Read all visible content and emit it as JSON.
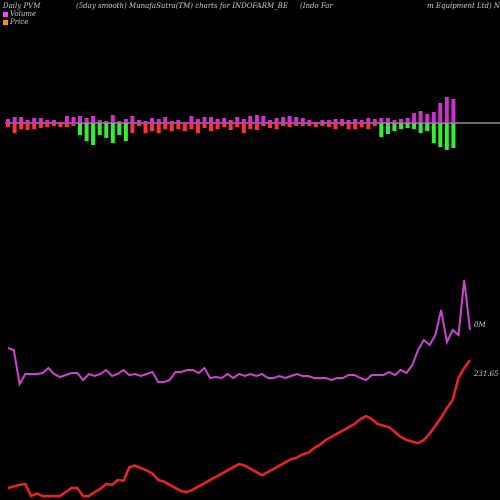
{
  "header": {
    "t1": "Daily PVM",
    "t2": "(5day smooth) MunafaSutra(TM) charts for INDOFARM_BE",
    "t3": "(Indo  Far",
    "t4": "m Equipment Ltd) N"
  },
  "legend": {
    "volume": "Volume",
    "price": "Price",
    "volume_color": "#ff40ff",
    "price_color": "#ff8c1a"
  },
  "colors": {
    "positive": "#cc33cc",
    "negative_up": "#ff3333",
    "negative_down": "#33ee33",
    "volume_line": "#cc44cc",
    "price_line": "#ee2222"
  },
  "chart_data": {
    "type": "line",
    "end_labels": {
      "volume": "0M",
      "price": "231.65"
    },
    "pvm_bars": {
      "up": [
        4,
        6,
        6,
        3,
        5,
        5,
        3,
        3,
        1,
        7,
        6,
        7,
        5,
        7,
        3,
        2,
        8,
        2,
        4,
        7,
        3,
        2,
        5,
        4,
        6,
        2,
        3,
        1,
        7,
        4,
        6,
        6,
        4,
        5,
        3,
        6,
        4,
        7,
        8,
        7,
        3,
        5,
        6,
        7,
        6,
        5,
        3,
        1,
        3,
        3,
        4,
        4,
        3,
        4,
        3,
        5,
        4,
        5,
        5,
        3,
        4,
        5,
        10,
        12,
        9,
        11,
        20,
        26,
        24
      ],
      "down": [
        [
          0,
          4,
          "r"
        ],
        [
          1,
          10,
          "r"
        ],
        [
          2,
          6,
          "r"
        ],
        [
          3,
          7,
          "r"
        ],
        [
          4,
          6,
          "r"
        ],
        [
          5,
          5,
          "r"
        ],
        [
          6,
          4,
          "r"
        ],
        [
          7,
          3,
          "r"
        ],
        [
          8,
          4,
          "r"
        ],
        [
          9,
          4,
          "r"
        ],
        [
          10,
          3,
          "r"
        ],
        [
          11,
          12,
          "g"
        ],
        [
          12,
          18,
          "g"
        ],
        [
          13,
          22,
          "g"
        ],
        [
          14,
          12,
          "g"
        ],
        [
          15,
          15,
          "g"
        ],
        [
          16,
          20,
          "g"
        ],
        [
          17,
          12,
          "g"
        ],
        [
          18,
          18,
          "g"
        ],
        [
          19,
          10,
          "r"
        ],
        [
          20,
          3,
          "r"
        ],
        [
          21,
          10,
          "r"
        ],
        [
          22,
          8,
          "r"
        ],
        [
          23,
          10,
          "r"
        ],
        [
          24,
          6,
          "r"
        ],
        [
          25,
          8,
          "r"
        ],
        [
          26,
          6,
          "r"
        ],
        [
          27,
          8,
          "r"
        ],
        [
          28,
          6,
          "r"
        ],
        [
          29,
          10,
          "r"
        ],
        [
          30,
          5,
          "r"
        ],
        [
          31,
          8,
          "r"
        ],
        [
          32,
          6,
          "r"
        ],
        [
          33,
          4,
          "r"
        ],
        [
          34,
          7,
          "r"
        ],
        [
          35,
          4,
          "r"
        ],
        [
          36,
          10,
          "r"
        ],
        [
          37,
          6,
          "r"
        ],
        [
          38,
          7,
          "r"
        ],
        [
          39,
          3,
          "r"
        ],
        [
          40,
          5,
          "r"
        ],
        [
          41,
          6,
          "r"
        ],
        [
          42,
          3,
          "r"
        ],
        [
          43,
          4,
          "r"
        ],
        [
          44,
          3,
          "r"
        ],
        [
          45,
          3,
          "r"
        ],
        [
          46,
          3,
          "r"
        ],
        [
          47,
          4,
          "r"
        ],
        [
          48,
          3,
          "r"
        ],
        [
          49,
          4,
          "r"
        ],
        [
          50,
          6,
          "r"
        ],
        [
          51,
          3,
          "r"
        ],
        [
          52,
          6,
          "r"
        ],
        [
          53,
          6,
          "r"
        ],
        [
          54,
          4,
          "r"
        ],
        [
          55,
          6,
          "r"
        ],
        [
          56,
          3,
          "r"
        ],
        [
          57,
          14,
          "g"
        ],
        [
          58,
          11,
          "g"
        ],
        [
          59,
          8,
          "g"
        ],
        [
          60,
          6,
          "g"
        ],
        [
          61,
          5,
          "g"
        ],
        [
          62,
          6,
          "g"
        ],
        [
          63,
          10,
          "g"
        ],
        [
          64,
          8,
          "g"
        ],
        [
          65,
          20,
          "g"
        ],
        [
          66,
          24,
          "g"
        ],
        [
          67,
          27,
          "g"
        ],
        [
          68,
          25,
          "g"
        ]
      ]
    },
    "volume_series": [
      82,
      80,
      46,
      56,
      56,
      56,
      57,
      62,
      56,
      53,
      55,
      57,
      57,
      50,
      56,
      54,
      56,
      60,
      54,
      56,
      60,
      55,
      56,
      54,
      56,
      58,
      48,
      48,
      50,
      58,
      58,
      60,
      60,
      57,
      62,
      52,
      53,
      52,
      56,
      52,
      56,
      54,
      56,
      54,
      56,
      52,
      52,
      54,
      52,
      54,
      56,
      54,
      54,
      52,
      52,
      52,
      50,
      52,
      52,
      55,
      55,
      52,
      50,
      55,
      55,
      55,
      58,
      55,
      60,
      57,
      65,
      80,
      90,
      85,
      95,
      120,
      88,
      100,
      95,
      150,
      100
    ],
    "price_series": [
      40,
      42,
      44,
      45,
      30,
      33,
      30,
      30,
      30,
      30,
      35,
      40,
      40,
      30,
      30,
      35,
      39,
      45,
      44,
      50,
      49,
      66,
      68,
      65,
      62,
      58,
      50,
      48,
      44,
      40,
      36,
      35,
      38,
      42,
      46,
      50,
      54,
      58,
      62,
      66,
      70,
      68,
      64,
      60,
      56,
      60,
      64,
      68,
      72,
      76,
      78,
      82,
      84,
      90,
      94,
      100,
      104,
      108,
      112,
      116,
      120,
      126,
      130,
      126,
      120,
      118,
      116,
      110,
      104,
      100,
      98,
      96,
      100,
      108,
      118,
      128,
      140,
      150,
      178,
      190,
      200
    ]
  }
}
